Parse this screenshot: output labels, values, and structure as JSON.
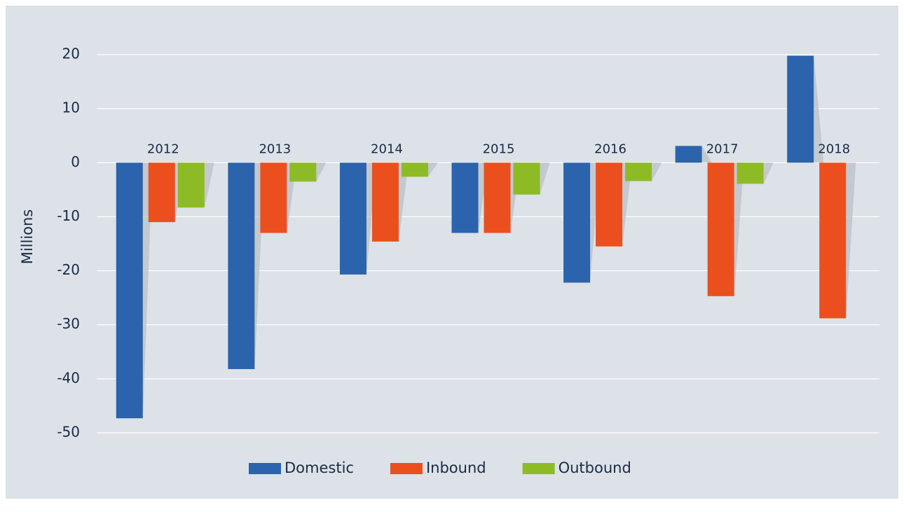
{
  "chart_data": {
    "type": "bar",
    "y_label": "Millions",
    "categories": [
      "2012",
      "2013",
      "2014",
      "2015",
      "2016",
      "2017",
      "2018"
    ],
    "series": [
      {
        "name": "Domestic",
        "color": "#2b64ad",
        "values": [
          -47.3,
          -38.2,
          -20.7,
          -13,
          -22.2,
          3.1,
          19.8
        ]
      },
      {
        "name": "Inbound",
        "color": "#ec4f1e",
        "values": [
          -11,
          -13,
          -14.6,
          -13,
          -15.5,
          -24.7,
          -28.8
        ]
      },
      {
        "name": "Outbound",
        "color": "#8dbb25",
        "values": [
          -8.3,
          -3.5,
          -2.6,
          -5.9,
          -3.4,
          -3.9,
          0
        ]
      }
    ],
    "ylim": [
      -50,
      20
    ],
    "yticks": [
      -50,
      -40,
      -30,
      -20,
      -10,
      0,
      10,
      20
    ],
    "grid": true
  }
}
